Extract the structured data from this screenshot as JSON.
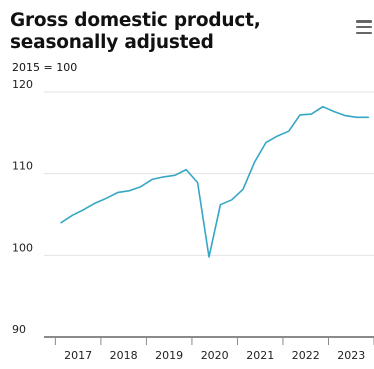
{
  "header": {
    "title": "Gross domestic product, seasonally adjusted",
    "subtitle": "2015 = 100",
    "menu_icon": "hamburger-menu-icon"
  },
  "chart_data": {
    "type": "line",
    "title": "Gross domestic product, seasonally adjusted",
    "subtitle": "2015 = 100",
    "xlabel": "",
    "ylabel": "",
    "ylim": [
      90,
      120
    ],
    "xlim": [
      2016.625,
      2023.875
    ],
    "yticks": [
      90,
      100,
      110,
      120
    ],
    "yticklabels": [
      "90",
      "100",
      "110",
      "120"
    ],
    "xticklabels": [
      "2017",
      "2018",
      "2019",
      "2020",
      "2021",
      "2022",
      "2023"
    ],
    "grid": "horizontal",
    "legend": "none",
    "color": "#35a7c4",
    "series": [
      {
        "x": [
          "2017Q1",
          "2017Q2",
          "2017Q3",
          "2017Q4",
          "2018Q1",
          "2018Q2",
          "2018Q3",
          "2018Q4",
          "2019Q1",
          "2019Q2",
          "2019Q3",
          "2019Q4",
          "2020Q1",
          "2020Q2",
          "2020Q3",
          "2020Q4",
          "2021Q1",
          "2021Q2",
          "2021Q3",
          "2021Q4",
          "2022Q1",
          "2022Q2",
          "2022Q3",
          "2022Q4",
          "2023Q1",
          "2023Q2",
          "2023Q3",
          "2023Q4"
        ],
        "values": [
          104.0,
          104.9,
          105.6,
          106.4,
          107.0,
          107.7,
          107.9,
          108.4,
          109.3,
          109.6,
          109.8,
          110.5,
          108.9,
          99.8,
          106.2,
          106.8,
          108.1,
          111.4,
          113.8,
          114.6,
          115.2,
          117.2,
          117.3,
          118.2,
          117.6,
          117.1,
          116.9,
          116.9
        ]
      }
    ]
  }
}
